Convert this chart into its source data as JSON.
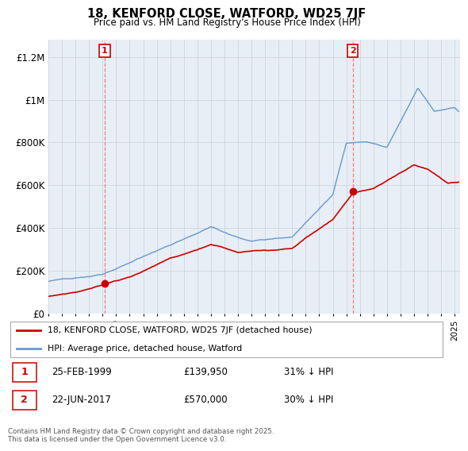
{
  "title": "18, KENFORD CLOSE, WATFORD, WD25 7JF",
  "subtitle": "Price paid vs. HM Land Registry's House Price Index (HPI)",
  "ylabel_ticks": [
    "£0",
    "£200K",
    "£400K",
    "£600K",
    "£800K",
    "£1M",
    "£1.2M"
  ],
  "ytick_values": [
    0,
    200000,
    400000,
    600000,
    800000,
    1000000,
    1200000
  ],
  "ylim": [
    0,
    1280000
  ],
  "xlim_start": 1995.0,
  "xlim_end": 2025.4,
  "chart_bg": "#e8eef5",
  "grid_color": "#c8d0dc",
  "line_color_red": "#cc0000",
  "line_color_blue": "#6699cc",
  "point1_x": 1999.15,
  "point1_y": 139950,
  "point2_x": 2017.47,
  "point2_y": 570000,
  "legend_label_red": "18, KENFORD CLOSE, WATFORD, WD25 7JF (detached house)",
  "legend_label_blue": "HPI: Average price, detached house, Watford",
  "annotation1_color": "#cc0000",
  "annotation2_color": "#cc0000",
  "footer": "Contains HM Land Registry data © Crown copyright and database right 2025.\nThis data is licensed under the Open Government Licence v3.0."
}
